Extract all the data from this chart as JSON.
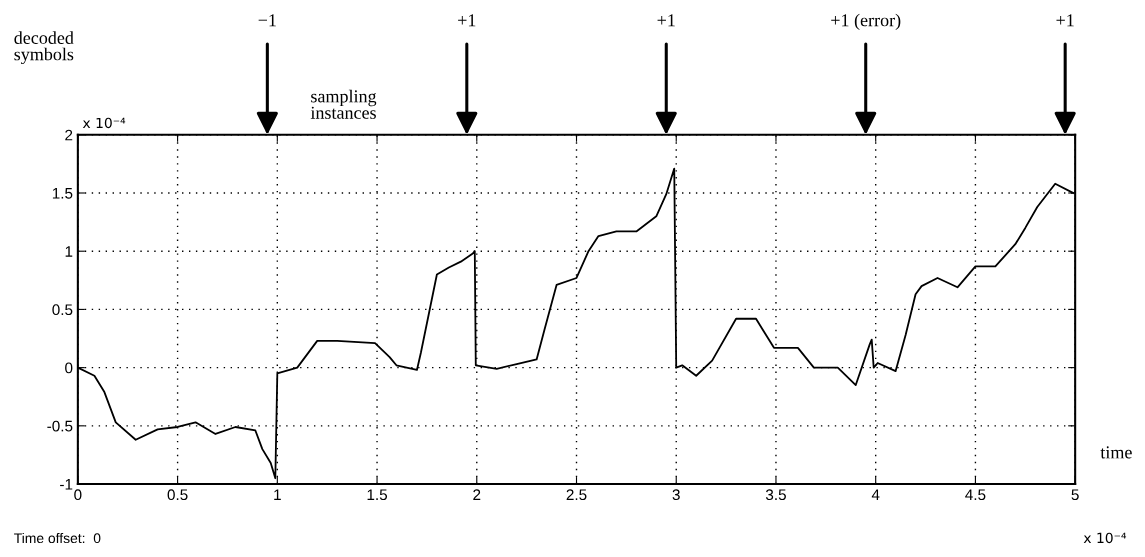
{
  "chart_data": {
    "type": "line",
    "xlabel": "time",
    "x": [
      0,
      0.083,
      0.133,
      0.19,
      0.29,
      0.4,
      0.5,
      0.59,
      0.69,
      0.79,
      0.89,
      0.925,
      0.967,
      0.99,
      1.0,
      1.1,
      1.2,
      1.3,
      1.49,
      1.563,
      1.597,
      1.7,
      1.72,
      1.8,
      1.86,
      1.92,
      1.98,
      1.99,
      1.995,
      2.1,
      2.2,
      2.3,
      2.34,
      2.4,
      2.5,
      2.56,
      2.61,
      2.7,
      2.8,
      2.9,
      2.95,
      2.99,
      3.0,
      3.03,
      3.1,
      3.18,
      3.3,
      3.4,
      3.49,
      3.61,
      3.69,
      3.81,
      3.9,
      3.97,
      3.98,
      3.99,
      4.01,
      4.1,
      4.15,
      4.2,
      4.23,
      4.31,
      4.41,
      4.5,
      4.6,
      4.7,
      4.75,
      4.81,
      4.9,
      4.99
    ],
    "series": [
      {
        "color": "#000000",
        "values": [
          0,
          -0.07,
          -0.21,
          -0.47,
          -0.62,
          -0.53,
          -0.51,
          -0.47,
          -0.57,
          -0.51,
          -0.54,
          -0.7,
          -0.82,
          -0.95,
          -0.05,
          0.0,
          0.23,
          0.23,
          0.21,
          0.09,
          0.02,
          -0.02,
          0.13,
          0.8,
          0.86,
          0.91,
          0.98,
          1.0,
          0.02,
          -0.01,
          0.03,
          0.07,
          0.33,
          0.71,
          0.77,
          1.0,
          1.13,
          1.17,
          1.17,
          1.3,
          1.49,
          1.71,
          0.0,
          0.02,
          -0.07,
          0.06,
          0.42,
          0.42,
          0.17,
          0.17,
          0.0,
          0.0,
          -0.15,
          0.2,
          0.24,
          0.0,
          0.04,
          -0.03,
          0.28,
          0.63,
          0.7,
          0.77,
          0.69,
          0.87,
          0.87,
          1.06,
          1.2,
          1.38,
          1.58,
          1.5
        ]
      }
    ],
    "xlim": [
      0,
      5
    ],
    "ylim": [
      -1,
      2
    ],
    "xticks": [
      0,
      0.5,
      1,
      1.5,
      2,
      2.5,
      3,
      3.5,
      4,
      4.5,
      5
    ],
    "yticks": [
      -1,
      -0.5,
      0,
      0.5,
      1,
      1.5,
      2
    ],
    "grid": true,
    "marker": "none",
    "line_style": "solid",
    "legend": false,
    "annotations": [
      "decoded\nsymbols",
      "−1",
      "+1",
      "+1",
      "+1 (error)",
      "+1",
      "sampling\ninstances",
      "x 10⁻⁴",
      "x 10⁻⁴",
      "Time offset:  0"
    ]
  }
}
